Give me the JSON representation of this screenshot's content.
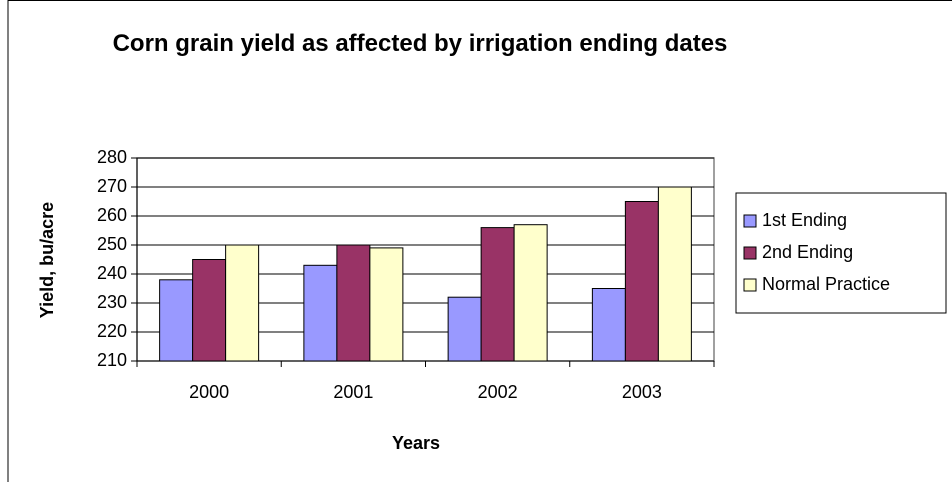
{
  "chart_data": {
    "type": "bar",
    "title": "Corn grain yield as affected by irrigation ending dates",
    "x_label": "Years",
    "y_label": "Yield, bu/acre",
    "categories": [
      "2000",
      "2001",
      "2002",
      "2003"
    ],
    "series": [
      {
        "name": "1st Ending",
        "color": "#9999ff",
        "values": [
          238,
          243,
          232,
          235
        ]
      },
      {
        "name": "2nd Ending",
        "color": "#993366",
        "values": [
          245,
          250,
          256,
          265
        ]
      },
      {
        "name": "Normal Practice",
        "color": "#ffffcc",
        "values": [
          250,
          249,
          257,
          270
        ]
      }
    ],
    "ylim": [
      210,
      280
    ],
    "yticks": [
      210,
      220,
      230,
      240,
      250,
      260,
      270,
      280
    ],
    "grid": true,
    "legend": "right"
  }
}
